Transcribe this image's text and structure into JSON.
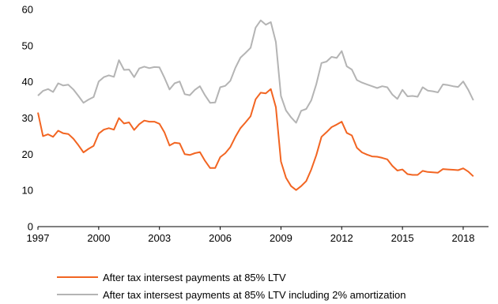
{
  "chart_data": {
    "type": "line",
    "title": "",
    "xlabel": "",
    "ylabel": "",
    "xlim": [
      1997,
      2019.25
    ],
    "ylim": [
      0,
      60
    ],
    "yticks": [
      0,
      10,
      20,
      30,
      40,
      50,
      60
    ],
    "xticks": [
      "1997",
      "2000",
      "2003",
      "2006",
      "2009",
      "2012",
      "2015",
      "2018"
    ],
    "grid": false,
    "legend_position": "bottom",
    "x": [
      1997.0,
      1997.25,
      1997.5,
      1997.75,
      1998.0,
      1998.25,
      1998.5,
      1998.75,
      1999.0,
      1999.25,
      1999.5,
      1999.75,
      2000.0,
      2000.25,
      2000.5,
      2000.75,
      2001.0,
      2001.25,
      2001.5,
      2001.75,
      2002.0,
      2002.25,
      2002.5,
      2002.75,
      2003.0,
      2003.25,
      2003.5,
      2003.75,
      2004.0,
      2004.25,
      2004.5,
      2004.75,
      2005.0,
      2005.25,
      2005.5,
      2005.75,
      2006.0,
      2006.25,
      2006.5,
      2006.75,
      2007.0,
      2007.25,
      2007.5,
      2007.75,
      2008.0,
      2008.25,
      2008.5,
      2008.75,
      2009.0,
      2009.25,
      2009.5,
      2009.75,
      2010.0,
      2010.25,
      2010.5,
      2010.75,
      2011.0,
      2011.25,
      2011.5,
      2011.75,
      2012.0,
      2012.25,
      2012.5,
      2012.75,
      2013.0,
      2013.25,
      2013.5,
      2013.75,
      2014.0,
      2014.25,
      2014.5,
      2014.75,
      2015.0,
      2015.25,
      2015.5,
      2015.75,
      2016.0,
      2016.25,
      2016.5,
      2016.75,
      2017.0,
      2017.25,
      2017.5,
      2017.75,
      2018.0,
      2018.25,
      2018.5
    ],
    "series": [
      {
        "name": "After tax intersest payments at 85% LTV",
        "color": "#f26522",
        "values": [
          31.5,
          25,
          25.5,
          24.8,
          26.5,
          25.8,
          25.6,
          24.3,
          22.5,
          20.5,
          21.5,
          22.3,
          25.7,
          26.8,
          27.2,
          26.8,
          30,
          28.5,
          28.8,
          26.7,
          28.3,
          29.3,
          29,
          29,
          28.4,
          26,
          22.4,
          23.2,
          23,
          20,
          19.8,
          20.3,
          20.6,
          18.2,
          16.2,
          16.2,
          19.2,
          20.3,
          22,
          24.8,
          27.2,
          28.8,
          30.5,
          35.2,
          37,
          36.8,
          38,
          33,
          18,
          13.5,
          11.2,
          10.1,
          11.2,
          12.6,
          15.8,
          19.8,
          24.8,
          26.1,
          27.5,
          28.2,
          29,
          25.9,
          25.2,
          21.8,
          20.5,
          19.9,
          19.4,
          19.3,
          19,
          18.6,
          16.8,
          15.5,
          15.8,
          14.5,
          14.3,
          14.3,
          15.4,
          15.1,
          15,
          14.9,
          15.9,
          15.8,
          15.7,
          15.6,
          16.1,
          15.2,
          13.9
        ]
      },
      {
        "name": "After tax intersest payments at 85% LTV including 2% amortization",
        "color": "#b4b4b4",
        "values": [
          36.2,
          37.5,
          38,
          37.2,
          39.6,
          39,
          39.2,
          37.9,
          36.1,
          34.2,
          35.1,
          35.8,
          40.1,
          41.3,
          41.8,
          41.4,
          46,
          43.3,
          43.4,
          41.3,
          43.7,
          44.2,
          43.8,
          44.1,
          44,
          41.1,
          37.9,
          39.6,
          40.1,
          36.6,
          36.3,
          37.8,
          38.8,
          36.3,
          34.2,
          34.3,
          38.5,
          38.9,
          40.3,
          43.9,
          46.7,
          48,
          49.4,
          55,
          57,
          55.8,
          56.5,
          51,
          36.1,
          32.1,
          30.2,
          28.7,
          32,
          32.5,
          34.9,
          39.4,
          45.2,
          45.6,
          46.9,
          46.6,
          48.5,
          44.3,
          43.4,
          40.5,
          39.8,
          39.3,
          38.8,
          38.3,
          38.8,
          38.5,
          36.5,
          35.3,
          37.8,
          36,
          36.1,
          35.9,
          38.5,
          37.6,
          37.4,
          37.1,
          39.3,
          39.1,
          38.8,
          38.6,
          40.1,
          37.8,
          34.9
        ]
      }
    ]
  }
}
